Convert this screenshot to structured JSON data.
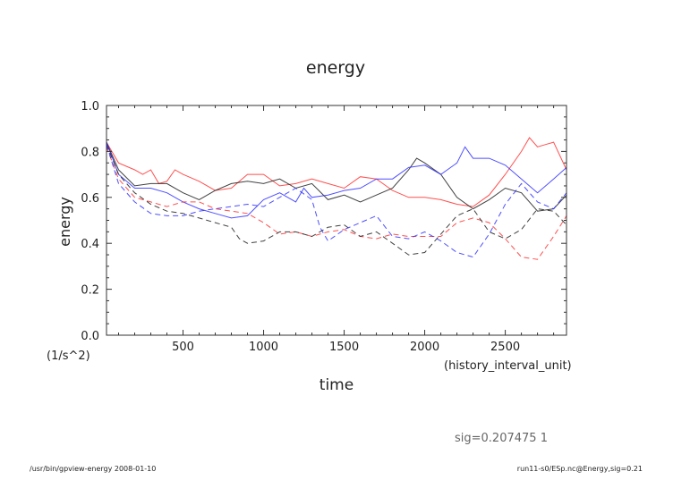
{
  "footer": {
    "left": "/usr/bin/gpview-energy  2008-01-10",
    "right": "run11-s0/ESp.nc@Energy,sig=0.21"
  },
  "sig_label": "sig=0.207475  1",
  "chart_data": {
    "type": "line",
    "title": "energy",
    "xlabel": "time",
    "xunits": "(history_interval_unit)",
    "ylabel": "energy",
    "yunits": "(1/s^2)",
    "xlim": [
      25,
      2880
    ],
    "ylim": [
      0.0,
      1.0
    ],
    "xticks": [
      500,
      1000,
      1500,
      2000,
      2500
    ],
    "xtick_labels": [
      "500",
      "1000",
      "1500",
      "2000",
      "2500"
    ],
    "yticks": [
      0.0,
      0.2,
      0.4,
      0.6,
      0.8,
      1.0
    ],
    "ytick_labels": [
      "0.0",
      "0.2",
      "0.4",
      "0.6",
      "0.8",
      "1.0"
    ],
    "grid": false,
    "series": [
      {
        "name": "red-solid",
        "color": "#ff3030",
        "dash": false,
        "x": [
          25,
          100,
          200,
          250,
          300,
          350,
          400,
          450,
          500,
          600,
          700,
          800,
          900,
          1000,
          1100,
          1200,
          1300,
          1400,
          1500,
          1600,
          1700,
          1800,
          1900,
          2000,
          2100,
          2200,
          2300,
          2400,
          2500,
          2600,
          2650,
          2700,
          2750,
          2800,
          2880
        ],
        "y": [
          0.84,
          0.75,
          0.72,
          0.7,
          0.72,
          0.66,
          0.67,
          0.72,
          0.7,
          0.67,
          0.63,
          0.64,
          0.7,
          0.7,
          0.65,
          0.66,
          0.68,
          0.66,
          0.64,
          0.69,
          0.68,
          0.63,
          0.6,
          0.6,
          0.59,
          0.57,
          0.56,
          0.61,
          0.7,
          0.8,
          0.86,
          0.82,
          0.83,
          0.84,
          0.72
        ]
      },
      {
        "name": "black-solid",
        "color": "#202020",
        "dash": false,
        "x": [
          25,
          100,
          200,
          300,
          400,
          500,
          600,
          700,
          800,
          900,
          1000,
          1100,
          1200,
          1300,
          1400,
          1500,
          1600,
          1700,
          1800,
          1900,
          1950,
          2000,
          2100,
          2200,
          2300,
          2400,
          2500,
          2600,
          2700,
          2800,
          2880
        ],
        "y": [
          0.84,
          0.72,
          0.65,
          0.66,
          0.66,
          0.62,
          0.59,
          0.63,
          0.66,
          0.67,
          0.66,
          0.68,
          0.64,
          0.66,
          0.59,
          0.61,
          0.58,
          0.61,
          0.64,
          0.72,
          0.77,
          0.75,
          0.7,
          0.6,
          0.55,
          0.59,
          0.64,
          0.62,
          0.54,
          0.55,
          0.61
        ]
      },
      {
        "name": "blue-solid",
        "color": "#3030ff",
        "dash": false,
        "x": [
          25,
          100,
          200,
          300,
          400,
          500,
          600,
          700,
          800,
          900,
          1000,
          1100,
          1200,
          1250,
          1300,
          1400,
          1500,
          1600,
          1700,
          1800,
          1900,
          2000,
          2100,
          2200,
          2250,
          2300,
          2400,
          2500,
          2600,
          2700,
          2800,
          2880
        ],
        "y": [
          0.84,
          0.7,
          0.64,
          0.64,
          0.62,
          0.58,
          0.55,
          0.53,
          0.51,
          0.52,
          0.59,
          0.62,
          0.58,
          0.64,
          0.6,
          0.61,
          0.63,
          0.64,
          0.68,
          0.68,
          0.73,
          0.74,
          0.7,
          0.75,
          0.82,
          0.77,
          0.77,
          0.74,
          0.68,
          0.62,
          0.68,
          0.73
        ]
      },
      {
        "name": "red-dashed",
        "color": "#ff3030",
        "dash": true,
        "x": [
          25,
          100,
          200,
          300,
          400,
          500,
          600,
          700,
          800,
          900,
          1000,
          1100,
          1200,
          1300,
          1400,
          1500,
          1600,
          1700,
          1800,
          1900,
          2000,
          2100,
          2200,
          2300,
          2400,
          2500,
          2600,
          2700,
          2800,
          2880
        ],
        "y": [
          0.82,
          0.68,
          0.6,
          0.58,
          0.56,
          0.58,
          0.58,
          0.55,
          0.54,
          0.53,
          0.49,
          0.44,
          0.45,
          0.43,
          0.45,
          0.46,
          0.43,
          0.42,
          0.44,
          0.43,
          0.43,
          0.43,
          0.49,
          0.51,
          0.49,
          0.42,
          0.34,
          0.33,
          0.43,
          0.52
        ]
      },
      {
        "name": "black-dashed",
        "color": "#202020",
        "dash": true,
        "x": [
          25,
          100,
          200,
          300,
          400,
          500,
          600,
          700,
          800,
          850,
          900,
          1000,
          1100,
          1200,
          1300,
          1400,
          1500,
          1600,
          1700,
          1800,
          1900,
          2000,
          2100,
          2200,
          2300,
          2400,
          2500,
          2600,
          2700,
          2800,
          2880
        ],
        "y": [
          0.83,
          0.7,
          0.62,
          0.57,
          0.54,
          0.53,
          0.51,
          0.49,
          0.47,
          0.42,
          0.4,
          0.41,
          0.45,
          0.45,
          0.43,
          0.47,
          0.48,
          0.43,
          0.45,
          0.4,
          0.35,
          0.36,
          0.44,
          0.52,
          0.55,
          0.45,
          0.42,
          0.46,
          0.55,
          0.54,
          0.48
        ]
      },
      {
        "name": "blue-dashed",
        "color": "#3030ff",
        "dash": true,
        "x": [
          25,
          100,
          200,
          300,
          400,
          500,
          600,
          700,
          800,
          900,
          1000,
          1100,
          1200,
          1300,
          1350,
          1400,
          1500,
          1600,
          1700,
          1800,
          1900,
          2000,
          2100,
          2200,
          2300,
          2400,
          2500,
          2600,
          2700,
          2800,
          2880
        ],
        "y": [
          0.83,
          0.66,
          0.58,
          0.53,
          0.52,
          0.52,
          0.54,
          0.55,
          0.56,
          0.57,
          0.56,
          0.6,
          0.64,
          0.59,
          0.47,
          0.41,
          0.46,
          0.49,
          0.52,
          0.43,
          0.42,
          0.45,
          0.41,
          0.36,
          0.34,
          0.44,
          0.57,
          0.66,
          0.58,
          0.55,
          0.62
        ]
      }
    ]
  }
}
